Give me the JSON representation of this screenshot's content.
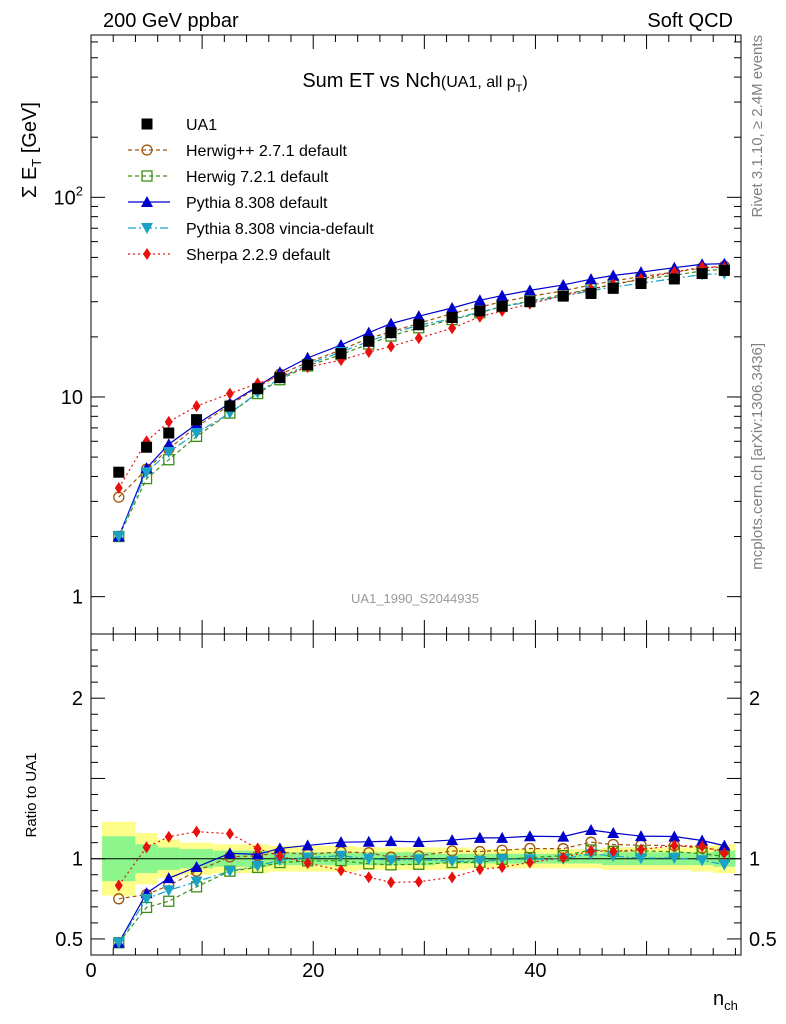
{
  "header": {
    "left": "200 GeV ppbar",
    "right": "Soft QCD"
  },
  "side": {
    "rivet": "Rivet 3.1.10, ≥ 2.4M events",
    "mcplots": "mcplots.cern.ch [arXiv:1306.3436]"
  },
  "chart_data": {
    "type": "line",
    "title": "Sum ET vs Nch",
    "title_sub": "(UA1, all p",
    "title_sub_idx": "T",
    "title_close": ")",
    "analysis_label": "UA1_1990_S2044935",
    "ylabel_main": "Σ E",
    "ylabel_idx": "T",
    "ylabel_unit": " [GeV]",
    "ylabel_ratio": "Ratio to UA1",
    "xlabel": "n",
    "xlabel_idx": "ch",
    "xlim": [
      0,
      58.5
    ],
    "ylim_main": [
      0.65,
      650
    ],
    "ylog": true,
    "ylim_ratio": [
      0.4,
      2.4
    ],
    "main_ticks": [
      {
        "v": 1,
        "label": "1"
      },
      {
        "v": 10,
        "label": "10"
      },
      {
        "v": 100,
        "label": "10",
        "sup": "2"
      }
    ],
    "ratio_ticks": [
      {
        "v": 0.5,
        "label": "0.5"
      },
      {
        "v": 1,
        "label": "1"
      },
      {
        "v": 2,
        "label": "2"
      }
    ],
    "x_ticks": [
      {
        "v": 0,
        "label": "0"
      },
      {
        "v": 20,
        "label": "20"
      },
      {
        "v": 40,
        "label": "40"
      }
    ],
    "legend_position": "top-left",
    "data": {
      "name": "UA1",
      "bins": [
        [
          1,
          4
        ],
        [
          4,
          6
        ],
        [
          6,
          8
        ],
        [
          8,
          11
        ],
        [
          11,
          14
        ],
        [
          14,
          16
        ],
        [
          16,
          18
        ],
        [
          18,
          21
        ],
        [
          21,
          24
        ],
        [
          24,
          26
        ],
        [
          26,
          28
        ],
        [
          28,
          31
        ],
        [
          31,
          34
        ],
        [
          34,
          36
        ],
        [
          36,
          38
        ],
        [
          38,
          41
        ],
        [
          41,
          44
        ],
        [
          44,
          46
        ],
        [
          46,
          48
        ],
        [
          48,
          51
        ],
        [
          51,
          54
        ],
        [
          54,
          56
        ],
        [
          56,
          58
        ]
      ],
      "x": [
        2.5,
        5,
        7,
        9.5,
        12.5,
        15,
        17,
        19.5,
        22.5,
        25,
        27,
        29.5,
        32.5,
        35,
        37,
        39.5,
        42.5,
        45,
        47,
        49.5,
        52.5,
        55,
        57
      ],
      "y": [
        4.2,
        5.6,
        6.6,
        7.7,
        9.0,
        11.0,
        12.5,
        14.5,
        16.5,
        19.0,
        21.0,
        23.0,
        25.0,
        27.0,
        28.5,
        30.0,
        32.0,
        33.0,
        35.0,
        37.0,
        39.0,
        41.5,
        43.0
      ],
      "band_stat": [
        0.14,
        0.09,
        0.07,
        0.06,
        0.05,
        0.05,
        0.04,
        0.04,
        0.04,
        0.04,
        0.04,
        0.04,
        0.03,
        0.03,
        0.03,
        0.03,
        0.03,
        0.03,
        0.04,
        0.04,
        0.04,
        0.04,
        0.05
      ],
      "band_tot": [
        0.23,
        0.16,
        0.12,
        0.1,
        0.09,
        0.09,
        0.08,
        0.08,
        0.08,
        0.07,
        0.07,
        0.07,
        0.07,
        0.06,
        0.06,
        0.06,
        0.06,
        0.06,
        0.07,
        0.07,
        0.07,
        0.08,
        0.09
      ]
    },
    "series": [
      {
        "name": "Herwig++ 2.7.1 default",
        "color": "#a0520a",
        "dash": "4,3",
        "marker": "circle-open",
        "values": [
          3.15,
          4.35,
          5.5,
          7.1,
          9.1,
          11.2,
          13.0,
          14.9,
          17.2,
          19.7,
          21.2,
          23.4,
          26.2,
          28.2,
          30.0,
          31.9,
          34.0,
          36.4,
          38.1,
          40.1,
          42.2,
          44.3,
          45.2
        ]
      },
      {
        "name": "Herwig 7.2.1 default",
        "color": "#3c8f14",
        "dash": "4,3",
        "marker": "square-open",
        "values": [
          2.0,
          3.9,
          4.85,
          6.35,
          8.3,
          10.4,
          12.2,
          14.3,
          16.3,
          18.4,
          20.2,
          22.2,
          24.4,
          26.4,
          28.4,
          30.2,
          32.6,
          34.8,
          36.6,
          38.8,
          40.7,
          42.8,
          43.6
        ]
      },
      {
        "name": "Pythia 8.308 default",
        "color": "#0000cc",
        "dash": "",
        "marker": "triangle-up",
        "values": [
          2.0,
          4.4,
          5.8,
          7.3,
          9.3,
          11.3,
          13.3,
          15.7,
          18.2,
          21.0,
          23.3,
          25.4,
          27.9,
          30.5,
          32.2,
          34.2,
          36.4,
          38.9,
          40.6,
          42.2,
          44.4,
          46.2,
          46.5
        ]
      },
      {
        "name": "Pythia 8.308 vincia-default",
        "color": "#1aa1c8",
        "dash": "8,3,2,3",
        "marker": "triangle-down",
        "values": [
          2.0,
          4.2,
          5.3,
          6.6,
          8.3,
          10.5,
          12.4,
          14.6,
          16.8,
          19.0,
          20.8,
          22.9,
          24.6,
          26.6,
          28.4,
          29.9,
          32.0,
          34.0,
          35.6,
          37.1,
          39.2,
          41.1,
          41.4
        ]
      },
      {
        "name": "Sherpa 2.2.9 default",
        "color": "#e8100c",
        "dash": "2,3",
        "marker": "diamond",
        "values": [
          3.5,
          6.0,
          7.5,
          9.0,
          10.4,
          11.7,
          12.7,
          14.1,
          15.3,
          16.8,
          17.9,
          19.7,
          22.1,
          25.2,
          27.0,
          29.3,
          32.2,
          34.6,
          36.6,
          39.1,
          42.2,
          44.7,
          44.5
        ]
      }
    ]
  }
}
